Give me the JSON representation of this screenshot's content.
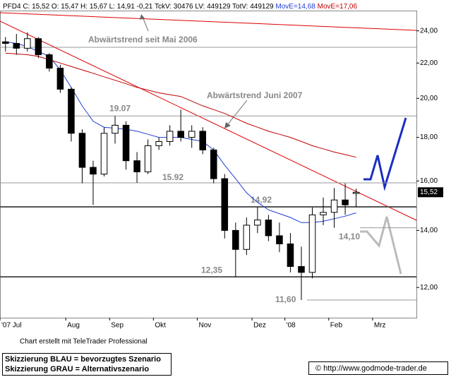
{
  "chart_data": {
    "type": "candlestick",
    "header": "PFD4 C: 15,52 O: 15,47 H: 15,67 L: 14,91 -0,21 TckV: 30476 LV: 449129 TotV: 449129",
    "categories": [
      "'07 Jul",
      null,
      null,
      null,
      null,
      null,
      "Aug",
      null,
      null,
      null,
      "Sep",
      null,
      null,
      null,
      "Okt",
      null,
      null,
      null,
      "Nov",
      null,
      null,
      null,
      null,
      "Dez",
      null,
      null,
      "'08",
      null,
      null,
      null,
      "Feb",
      null,
      null,
      null,
      "Mrz",
      null,
      null,
      null
    ],
    "open": [
      23.3,
      23.2,
      22.9,
      23.5,
      22.5,
      21.7,
      20.5,
      18.2,
      16.6,
      16.3,
      18.2,
      18.6,
      16.9,
      16.4,
      17.6,
      17.8,
      18.3,
      18.0,
      18.3,
      17.4,
      16.1,
      14.0,
      13.3,
      14.2,
      14.4,
      13.8,
      13.5,
      12.7,
      12.5,
      14.6,
      14.7,
      15.2,
      15.47,
      null,
      null,
      null,
      null,
      null
    ],
    "high": [
      23.6,
      23.8,
      23.9,
      23.6,
      22.6,
      21.9,
      20.6,
      18.4,
      16.9,
      18.5,
      19.07,
      18.8,
      17.3,
      17.9,
      18.0,
      18.6,
      19.4,
      18.6,
      18.5,
      17.5,
      16.3,
      14.3,
      14.5,
      14.92,
      14.6,
      14.3,
      13.9,
      13.4,
      14.9,
      15.3,
      15.7,
      15.9,
      15.67,
      null,
      null,
      null,
      null,
      null
    ],
    "low": [
      22.7,
      22.5,
      22.7,
      22.3,
      21.5,
      20.3,
      17.8,
      15.9,
      15.0,
      16.2,
      17.7,
      16.5,
      15.92,
      16.3,
      17.4,
      17.6,
      17.8,
      17.5,
      17.2,
      15.9,
      13.7,
      12.35,
      13.1,
      13.9,
      13.6,
      13.2,
      12.5,
      11.6,
      12.3,
      14.2,
      14.1,
      14.6,
      14.91,
      null,
      null,
      null,
      null,
      null
    ],
    "close": [
      23.2,
      22.9,
      23.5,
      22.5,
      21.7,
      20.5,
      18.2,
      16.6,
      16.3,
      18.2,
      18.6,
      16.9,
      16.4,
      17.6,
      17.8,
      18.3,
      18.0,
      18.3,
      17.4,
      16.1,
      14.0,
      13.3,
      14.2,
      14.4,
      13.8,
      13.5,
      12.7,
      12.5,
      14.6,
      14.7,
      15.2,
      15.0,
      15.52,
      null,
      null,
      null,
      null,
      null
    ],
    "series": [
      {
        "name": "MovE=14,68",
        "color": "#1f3fd0",
        "values": [
          23.3,
          23.2,
          23.0,
          22.7,
          22.4,
          21.6,
          20.6,
          19.6,
          18.8,
          18.5,
          18.45,
          18.4,
          18.3,
          18.15,
          18.0,
          18.0,
          18.0,
          17.9,
          17.8,
          17.4,
          16.7,
          16.1,
          15.5,
          15.1,
          14.8,
          14.65,
          14.5,
          14.3,
          14.3,
          14.35,
          14.45,
          14.55,
          14.68,
          null,
          null,
          null,
          null,
          null
        ]
      },
      {
        "name": "MovE=17,06",
        "color": "#c00000",
        "values": [
          22.6,
          22.55,
          22.5,
          22.4,
          22.2,
          22.0,
          21.8,
          21.6,
          21.4,
          21.2,
          21.0,
          20.8,
          20.6,
          20.45,
          20.3,
          20.2,
          20.1,
          19.85,
          19.6,
          19.4,
          19.2,
          18.95,
          18.7,
          18.5,
          18.3,
          18.15,
          18.0,
          17.8,
          17.6,
          17.45,
          17.3,
          17.18,
          17.06,
          null,
          null,
          null,
          null,
          null
        ]
      }
    ],
    "log_scale": true,
    "ylim": [
      11.06,
      25.35
    ],
    "yticks": [
      {
        "value": 12,
        "label": "12,00"
      },
      {
        "value": 14,
        "label": "14,00"
      },
      {
        "value": 16,
        "label": "16,00"
      },
      {
        "value": 18,
        "label": "18,00"
      },
      {
        "value": 20,
        "label": "20,00"
      },
      {
        "value": 22,
        "label": "22,00"
      },
      {
        "value": 24,
        "label": "24,00"
      }
    ],
    "price_tag": {
      "value": 15.52,
      "label": "15,52"
    },
    "levels": [
      {
        "value": 19.07,
        "label": "19.07"
      },
      {
        "value": 15.92,
        "label": "15.92"
      },
      {
        "value": 14.92,
        "label": "14,92"
      },
      {
        "value": 14.1,
        "label": "14,10"
      },
      {
        "value": 12.35,
        "label": "12,35"
      },
      {
        "value": 11.6,
        "label": "11,60"
      }
    ],
    "trend_labels": [
      "Abwärtstrend seit Mai 2006",
      "Abwärtstrend Juni 2007"
    ],
    "footer": "Chart erstellt mit TeleTrader Professional",
    "legend_notes": [
      "Skizzierung BLAU = bevorzugtes Szenario",
      "Skizzierung GRAU = Alternativszenario"
    ],
    "source": "© http://www.godmode-trader.de"
  }
}
